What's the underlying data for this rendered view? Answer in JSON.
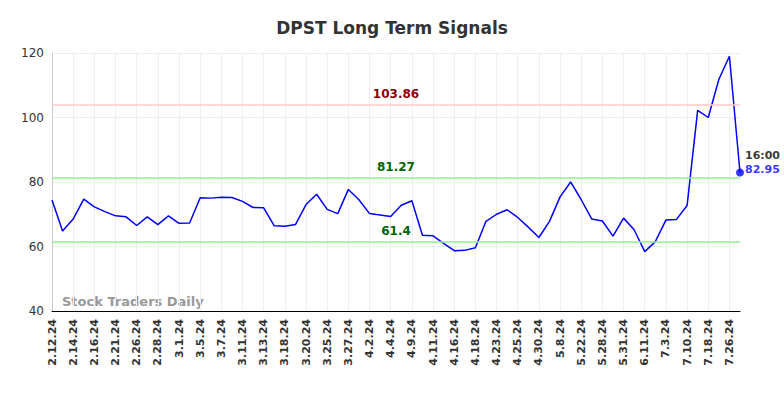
{
  "chart_data": {
    "type": "line",
    "title": "DPST Long Term Signals",
    "categories": [
      "2.12.24",
      null,
      "2.14.24",
      null,
      "2.16.24",
      null,
      "2.21.24",
      null,
      "2.26.24",
      null,
      "2.28.24",
      null,
      "3.1.24",
      null,
      "3.5.24",
      null,
      "3.7.24",
      null,
      "3.11.24",
      null,
      "3.13.24",
      null,
      "3.18.24",
      null,
      "3.20.24",
      null,
      "3.25.24",
      null,
      "3.27.24",
      null,
      "4.2.24",
      null,
      "4.4.24",
      null,
      "4.9.24",
      null,
      "4.11.24",
      null,
      "4.16.24",
      null,
      "4.18.24",
      null,
      "4.23.24",
      null,
      "4.25.24",
      null,
      "4.30.24",
      null,
      "5.8.24",
      null,
      "5.22.24",
      null,
      "5.28.24",
      null,
      "5.31.24",
      null,
      "6.11.24",
      null,
      "7.3.24",
      null,
      "7.10.24",
      null,
      "7.18.24",
      null,
      "7.26.24",
      null
    ],
    "values": [
      74.4,
      64.8,
      68.5,
      74.7,
      72.3,
      70.8,
      69.5,
      69.2,
      66.5,
      69.2,
      66.8,
      69.5,
      67.2,
      67.3,
      75.1,
      75.0,
      75.3,
      75.2,
      74.0,
      72.1,
      72.0,
      66.4,
      66.3,
      66.8,
      73.0,
      76.2,
      71.5,
      70.2,
      77.7,
      74.5,
      70.2,
      69.8,
      69.3,
      72.8,
      74.2,
      63.5,
      63.3,
      61.0,
      58.7,
      58.8,
      59.6,
      67.8,
      70.0,
      71.4,
      69.0,
      66.0,
      62.8,
      67.8,
      75.4,
      80.0,
      74.5,
      68.5,
      67.9,
      63.2,
      68.8,
      65.2,
      58.4,
      61.5,
      68.2,
      68.4,
      72.7,
      102.2,
      100.0,
      111.8,
      119.0,
      82.95
    ],
    "color": "#0000ff",
    "ylim": [
      40,
      120
    ],
    "yticks": [
      40,
      60,
      80,
      100,
      120
    ],
    "grid": true,
    "hlines": [
      {
        "value": 103.86,
        "color": "#ffc8c8",
        "label_color": "#8b0000"
      },
      {
        "value": 81.27,
        "color": "#90ee90",
        "label_color": "#006400"
      },
      {
        "value": 61.4,
        "color": "#90ee90",
        "label_color": "#006400"
      }
    ],
    "end_label": "16:00",
    "watermark": "Stock Traders Daily"
  }
}
